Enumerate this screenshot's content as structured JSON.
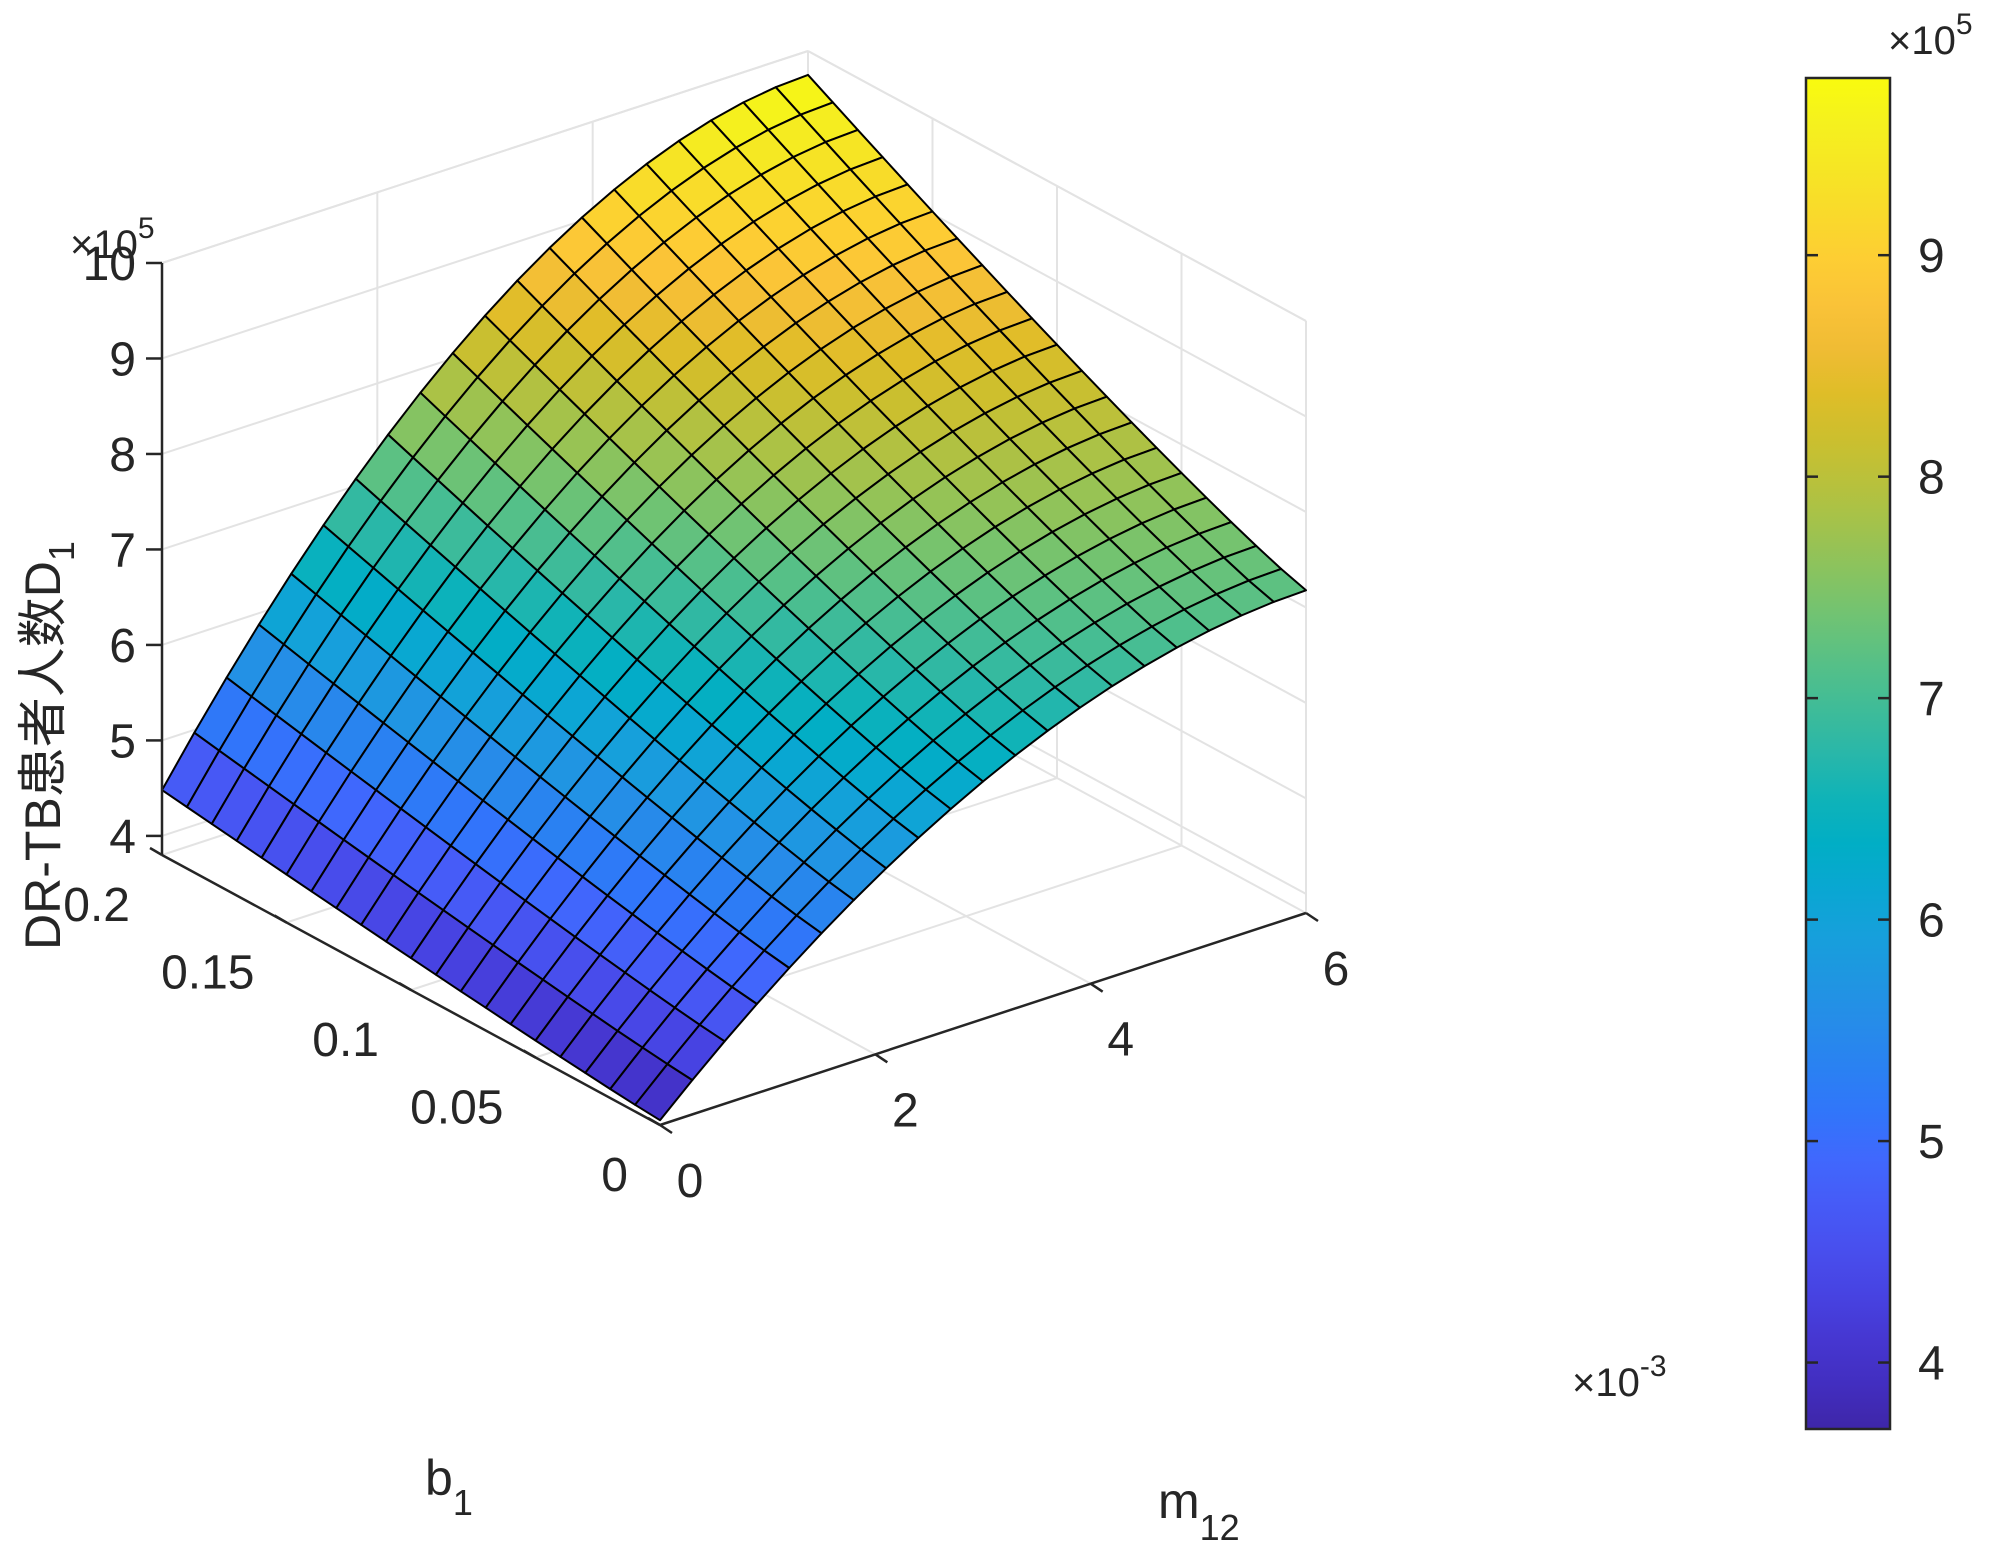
{
  "chart_data": {
    "type": "surface",
    "zlabel": {
      "main": "DR-TB患者人数D",
      "sub": "1"
    },
    "xlabel": {
      "main": "m",
      "sub": "12"
    },
    "ylabel": {
      "main": "b",
      "sub": "1"
    },
    "xlim": [
      0,
      0.006
    ],
    "ylim": [
      0,
      0.2
    ],
    "zlim": [
      380000,
      1000000
    ],
    "x_tick_labels": [
      "0",
      "2",
      "4",
      "6"
    ],
    "x_tick_values": [
      0,
      0.002,
      0.004,
      0.006
    ],
    "x_exponent": {
      "base": "×10",
      "power": "-3"
    },
    "y_tick_labels": [
      "0",
      "0.05",
      "0.1",
      "0.15",
      "0.2"
    ],
    "y_tick_values": [
      0,
      0.05,
      0.1,
      0.15,
      0.2
    ],
    "z_tick_labels": [
      "4",
      "5",
      "6",
      "7",
      "8",
      "9",
      "10"
    ],
    "z_tick_values": [
      400000,
      500000,
      600000,
      700000,
      800000,
      900000,
      1000000
    ],
    "z_exponent": {
      "base": "×10",
      "power": "5"
    },
    "colorbar": {
      "colormap": "parula",
      "range": [
        370000,
        980000
      ],
      "tick_labels": [
        "4",
        "5",
        "6",
        "7",
        "8",
        "9"
      ],
      "tick_values": [
        400000,
        500000,
        600000,
        700000,
        800000,
        900000
      ],
      "exponent": {
        "base": "×10",
        "power": "5"
      }
    },
    "grid": true,
    "mesh": {
      "nx": 21,
      "ny": 21
    },
    "corner_values": {
      "m0_b0": 385000,
      "m0_b02": 448000,
      "m6_b0": 718000,
      "m6_b02": 975000
    },
    "edge_samples": {
      "b1_0_along_m12": [
        385000,
        448000,
        550000,
        620000,
        680000,
        718000
      ],
      "m12_0_along_b1": [
        385000,
        400000,
        425000,
        448000
      ],
      "m12_6e-3_along_b1": [
        718000,
        790000,
        865000,
        940000,
        975000
      ]
    }
  }
}
